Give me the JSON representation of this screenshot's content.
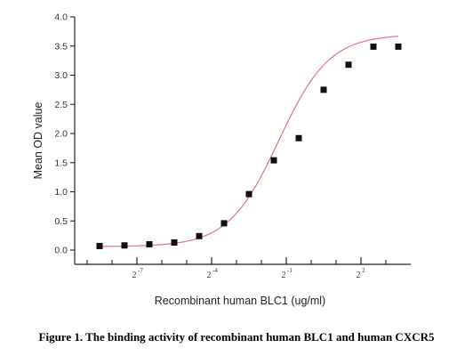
{
  "chart_data": {
    "type": "scatter",
    "ylabel": "Mean OD value",
    "xlabel": "Recombinant human BLC1 (ug/ml)",
    "ylim": [
      0.0,
      4.0
    ],
    "yticks": [
      "0.0",
      "0.5",
      "1.0",
      "1.5",
      "2.0",
      "2.5",
      "3.0",
      "3.5",
      "4.0"
    ],
    "xscale": "log2",
    "xlim": [
      -9.0,
      3.0
    ],
    "xtick_labels": [
      {
        "base": "2",
        "exp": "-7",
        "log2": -7
      },
      {
        "base": "2",
        "exp": "-4",
        "log2": -4
      },
      {
        "base": "2",
        "exp": "-1",
        "log2": -1
      },
      {
        "base": "2",
        "exp": "2",
        "log2": 2
      }
    ],
    "minor_ticks_log2": [
      -9,
      -8,
      -7,
      -6,
      -5,
      -4,
      -3,
      -2,
      -1,
      0,
      1,
      2,
      3
    ],
    "series": [
      {
        "marker": "square",
        "points": [
          {
            "x_log2": -8.5,
            "y": 0.07
          },
          {
            "x_log2": -7.5,
            "y": 0.08
          },
          {
            "x_log2": -6.5,
            "y": 0.1
          },
          {
            "x_log2": -5.5,
            "y": 0.13
          },
          {
            "x_log2": -4.5,
            "y": 0.24
          },
          {
            "x_log2": -3.5,
            "y": 0.46
          },
          {
            "x_log2": -2.5,
            "y": 0.96
          },
          {
            "x_log2": -1.5,
            "y": 1.54
          },
          {
            "x_log2": -0.5,
            "y": 1.92
          },
          {
            "x_log2": 0.5,
            "y": 2.75
          },
          {
            "x_log2": 1.5,
            "y": 3.18
          },
          {
            "x_log2": 2.5,
            "y": 3.49
          },
          {
            "x_log2": 3.5,
            "y": 3.49
          }
        ]
      }
    ],
    "fit": {
      "model": "4PL",
      "color": "#e8737a",
      "bottom": 0.06,
      "top": 3.7,
      "ec50_log2": -1.3,
      "hill_slope_log2": 0.75
    },
    "grid": false,
    "legend": "none"
  },
  "caption": "Figure 1. The binding activity of recombinant human BLC1 and human CXCR5"
}
